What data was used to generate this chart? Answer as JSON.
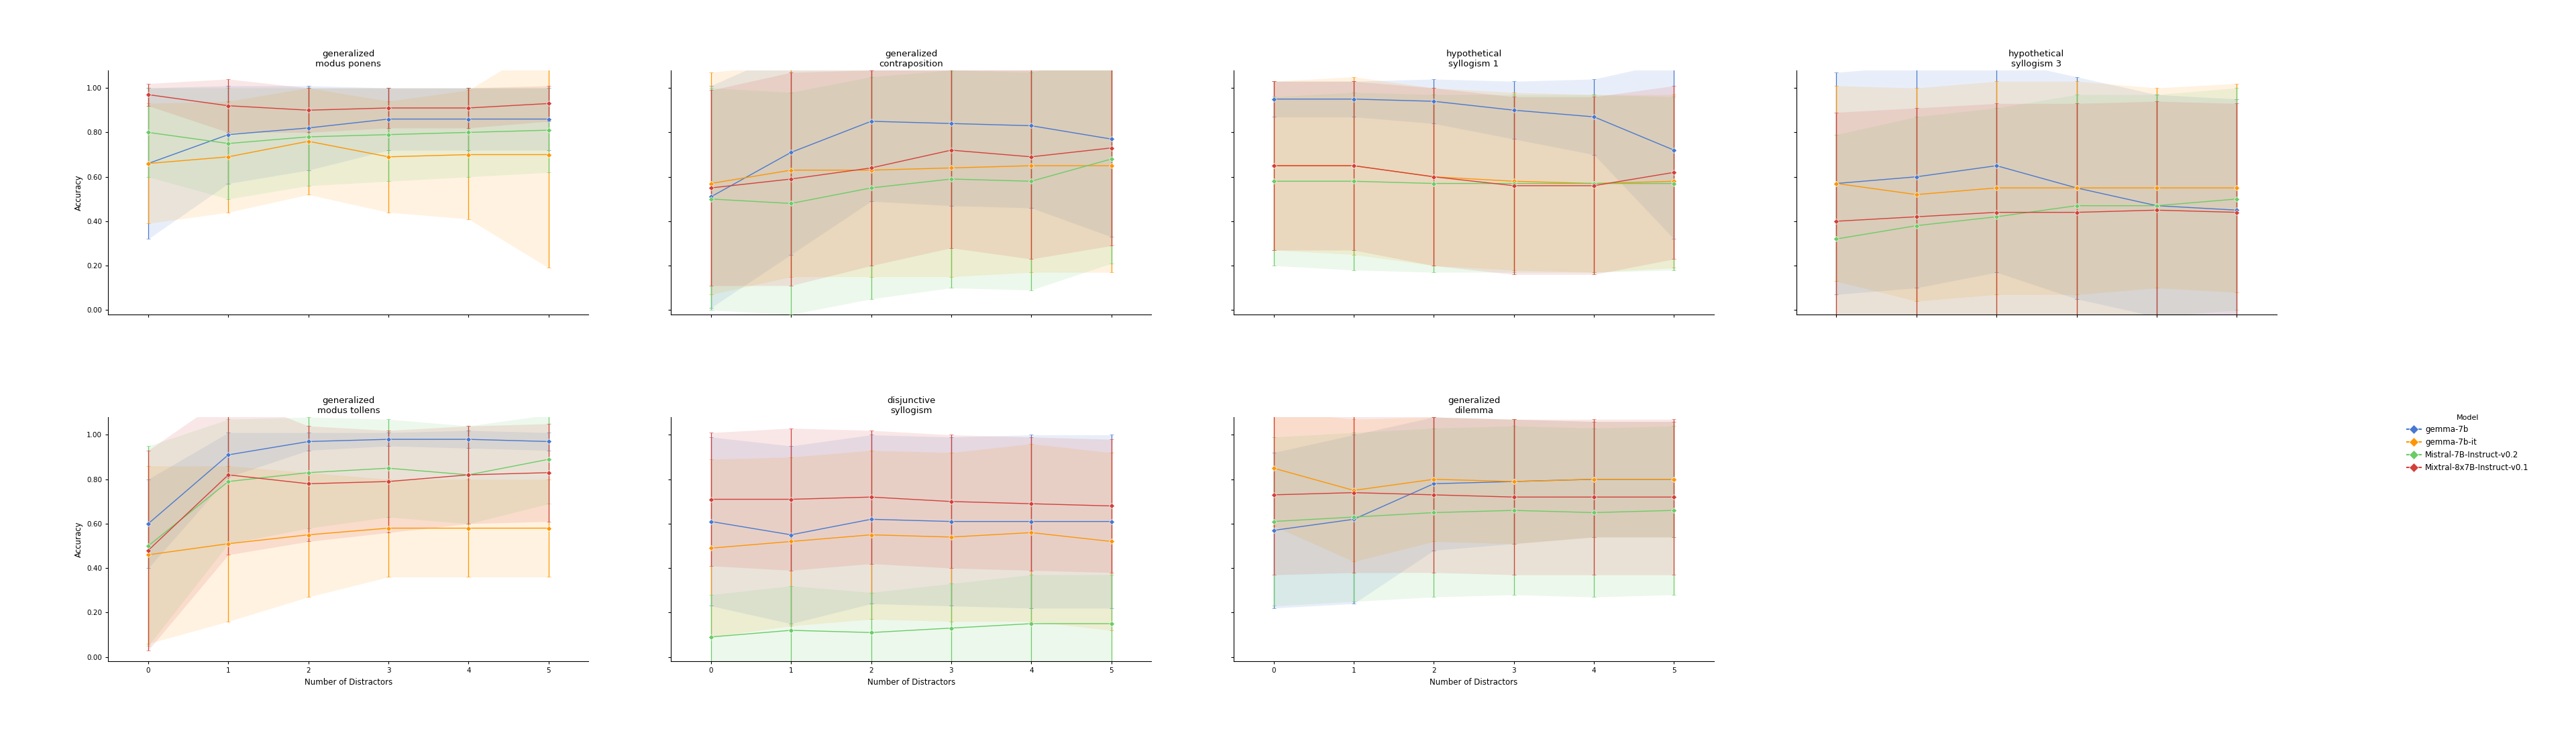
{
  "models": [
    "gemma-7b",
    "gemma-7b-it",
    "Mistral-7B-Instruct-v0.2",
    "Mixtral-8x7B-Instruct-v0.1"
  ],
  "colors": [
    "#4878CF",
    "#FF9500",
    "#6ACC65",
    "#D43F3A"
  ],
  "x": [
    0,
    1,
    2,
    3,
    4,
    5
  ],
  "subplots": {
    "generalized\nmodus ponens": {
      "means": [
        [
          0.66,
          0.79,
          0.82,
          0.86,
          0.86,
          0.86
        ],
        [
          0.66,
          0.69,
          0.76,
          0.69,
          0.7,
          0.7
        ],
        [
          0.8,
          0.75,
          0.78,
          0.79,
          0.8,
          0.81
        ],
        [
          0.97,
          0.92,
          0.9,
          0.91,
          0.91,
          0.93
        ]
      ],
      "errs": [
        [
          0.34,
          0.22,
          0.19,
          0.14,
          0.14,
          0.14
        ],
        [
          0.27,
          0.25,
          0.24,
          0.25,
          0.29,
          0.51
        ],
        [
          0.2,
          0.25,
          0.22,
          0.21,
          0.2,
          0.19
        ],
        [
          0.05,
          0.12,
          0.1,
          0.09,
          0.09,
          0.08
        ]
      ]
    },
    "generalized\ncontraposition": {
      "means": [
        [
          0.51,
          0.71,
          0.85,
          0.84,
          0.83,
          0.77
        ],
        [
          0.57,
          0.63,
          0.63,
          0.64,
          0.65,
          0.65
        ],
        [
          0.5,
          0.48,
          0.55,
          0.59,
          0.58,
          0.68
        ],
        [
          0.55,
          0.59,
          0.64,
          0.72,
          0.69,
          0.73
        ]
      ],
      "errs": [
        [
          0.5,
          0.46,
          0.36,
          0.37,
          0.37,
          0.44
        ],
        [
          0.5,
          0.48,
          0.48,
          0.49,
          0.48,
          0.48
        ],
        [
          0.5,
          0.5,
          0.5,
          0.49,
          0.49,
          0.47
        ],
        [
          0.44,
          0.48,
          0.44,
          0.44,
          0.46,
          0.44
        ]
      ]
    },
    "hypothetical\nsyllogism 1": {
      "means": [
        [
          0.95,
          0.95,
          0.94,
          0.9,
          0.87,
          0.72
        ],
        [
          0.65,
          0.65,
          0.6,
          0.58,
          0.57,
          0.58
        ],
        [
          0.58,
          0.58,
          0.57,
          0.57,
          0.57,
          0.57
        ],
        [
          0.65,
          0.65,
          0.6,
          0.56,
          0.56,
          0.62
        ]
      ],
      "errs": [
        [
          0.08,
          0.08,
          0.1,
          0.13,
          0.17,
          0.4
        ],
        [
          0.38,
          0.4,
          0.4,
          0.4,
          0.4,
          0.39
        ],
        [
          0.38,
          0.4,
          0.4,
          0.4,
          0.4,
          0.39
        ],
        [
          0.38,
          0.38,
          0.4,
          0.4,
          0.4,
          0.39
        ]
      ]
    },
    "hypothetical\nsyllogism 3": {
      "means": [
        [
          0.57,
          0.6,
          0.65,
          0.55,
          0.47,
          0.45
        ],
        [
          0.57,
          0.52,
          0.55,
          0.55,
          0.55,
          0.55
        ],
        [
          0.32,
          0.38,
          0.42,
          0.47,
          0.47,
          0.5
        ],
        [
          0.4,
          0.42,
          0.44,
          0.44,
          0.45,
          0.44
        ]
      ],
      "errs": [
        [
          0.5,
          0.5,
          0.48,
          0.5,
          0.5,
          0.5
        ],
        [
          0.44,
          0.48,
          0.48,
          0.48,
          0.45,
          0.47
        ],
        [
          0.47,
          0.49,
          0.49,
          0.5,
          0.5,
          0.5
        ],
        [
          0.49,
          0.49,
          0.49,
          0.49,
          0.49,
          0.49
        ]
      ]
    },
    "generalized\nmodus tollens": {
      "means": [
        [
          0.6,
          0.91,
          0.97,
          0.98,
          0.98,
          0.97
        ],
        [
          0.46,
          0.51,
          0.55,
          0.58,
          0.58,
          0.58
        ],
        [
          0.5,
          0.79,
          0.83,
          0.85,
          0.82,
          0.89
        ],
        [
          0.48,
          0.82,
          0.78,
          0.79,
          0.82,
          0.83
        ]
      ],
      "errs": [
        [
          0.2,
          0.1,
          0.04,
          0.03,
          0.04,
          0.04
        ],
        [
          0.4,
          0.35,
          0.28,
          0.22,
          0.22,
          0.22
        ],
        [
          0.45,
          0.28,
          0.25,
          0.22,
          0.22,
          0.2
        ],
        [
          0.45,
          0.36,
          0.26,
          0.23,
          0.22,
          0.22
        ]
      ]
    },
    "disjunctive\nsyllogism": {
      "means": [
        [
          0.61,
          0.55,
          0.62,
          0.61,
          0.61,
          0.61
        ],
        [
          0.49,
          0.52,
          0.55,
          0.54,
          0.56,
          0.52
        ],
        [
          0.09,
          0.12,
          0.11,
          0.13,
          0.15,
          0.15
        ],
        [
          0.71,
          0.71,
          0.72,
          0.7,
          0.69,
          0.68
        ]
      ],
      "errs": [
        [
          0.38,
          0.4,
          0.38,
          0.38,
          0.39,
          0.39
        ],
        [
          0.4,
          0.38,
          0.38,
          0.38,
          0.4,
          0.4
        ],
        [
          0.19,
          0.2,
          0.18,
          0.2,
          0.22,
          0.22
        ],
        [
          0.3,
          0.32,
          0.3,
          0.3,
          0.3,
          0.3
        ]
      ]
    },
    "generalized\ndilemma": {
      "means": [
        [
          0.57,
          0.62,
          0.78,
          0.79,
          0.8,
          0.8
        ],
        [
          0.85,
          0.75,
          0.8,
          0.79,
          0.8,
          0.8
        ],
        [
          0.61,
          0.63,
          0.65,
          0.66,
          0.65,
          0.66
        ],
        [
          0.73,
          0.74,
          0.73,
          0.72,
          0.72,
          0.72
        ]
      ],
      "errs": [
        [
          0.35,
          0.38,
          0.3,
          0.28,
          0.26,
          0.26
        ],
        [
          0.26,
          0.32,
          0.28,
          0.28,
          0.26,
          0.26
        ],
        [
          0.38,
          0.38,
          0.38,
          0.38,
          0.38,
          0.38
        ],
        [
          0.36,
          0.36,
          0.35,
          0.35,
          0.35,
          0.35
        ]
      ]
    }
  },
  "subplot_order": [
    [
      "generalized\nmodus ponens",
      "generalized\ncontraposition",
      "hypothetical\nsyllogism 1",
      "hypothetical\nsyllogism 3"
    ],
    [
      "generalized\nmodus tollens",
      "disjunctive\nsyllogism",
      "generalized\ndilemma"
    ]
  ],
  "ylabel": "Accuracy",
  "xlabel": "Number of Distractors",
  "legend_title": "Model",
  "yticks": [
    0.0,
    0.2,
    0.4,
    0.6,
    0.8,
    1.0
  ],
  "xticks": [
    0,
    1,
    2,
    3,
    4,
    5
  ],
  "background_color": "#ffffff"
}
